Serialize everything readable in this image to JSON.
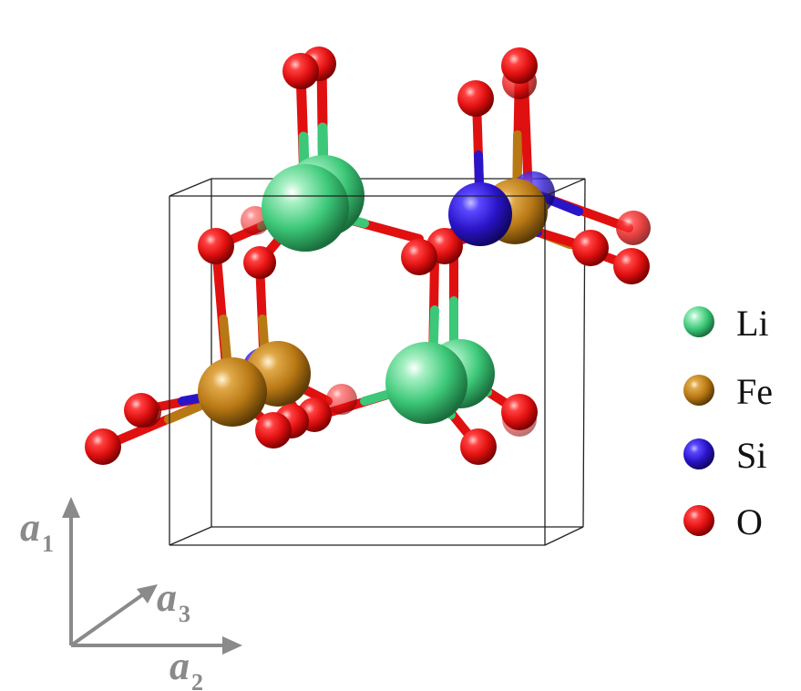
{
  "diagram": {
    "type": "crystal-structure"
  },
  "colors": {
    "Li": "#3cc878",
    "Fe": "#b87814",
    "Si": "#2a14c8",
    "O": "#e01010",
    "cell": "#222222",
    "axes": "#8a8a8a"
  },
  "legend": [
    {
      "symbol": "Li",
      "label": "Li"
    },
    {
      "symbol": "Fe",
      "label": "Fe"
    },
    {
      "symbol": "Si",
      "label": "Si"
    },
    {
      "symbol": "O",
      "label": "O"
    }
  ],
  "axes": {
    "a1": {
      "letter": "a",
      "sub": "1"
    },
    "a2": {
      "letter": "a",
      "sub": "2"
    },
    "a3": {
      "letter": "a",
      "sub": "3"
    }
  }
}
